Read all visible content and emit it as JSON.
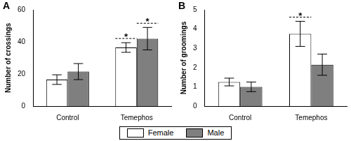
{
  "chart_data": [
    {
      "type": "bar",
      "title": "A",
      "y_label": "Number of crossings",
      "categories": [
        "Control",
        "Temephos"
      ],
      "series": [
        {
          "name": "Female",
          "color": "#ffffff",
          "values": [
            16.5,
            36.5
          ],
          "errors": [
            3,
            3
          ]
        },
        {
          "name": "Male",
          "color": "#7f7f7f",
          "values": [
            21.5,
            42
          ],
          "errors": [
            5,
            7
          ]
        }
      ],
      "annotations": [
        {
          "text": "*",
          "category": "Temephos",
          "series": "Female"
        },
        {
          "text": "*",
          "category": "Temephos",
          "series": "Male"
        }
      ],
      "ylim": [
        0,
        60
      ],
      "yticks": [
        0,
        20,
        40,
        60
      ],
      "grid": false,
      "legend": "bottom"
    },
    {
      "type": "bar",
      "title": "B",
      "y_label": "Number of groomings",
      "categories": [
        "Control",
        "Temephos"
      ],
      "series": [
        {
          "name": "Female",
          "color": "#ffffff",
          "values": [
            1.25,
            3.75
          ],
          "errors": [
            0.2,
            0.65
          ]
        },
        {
          "name": "Male",
          "color": "#7f7f7f",
          "values": [
            1.0,
            2.15
          ],
          "errors": [
            0.25,
            0.55
          ]
        }
      ],
      "annotations": [
        {
          "text": "*",
          "category": "Temephos",
          "series": "Female"
        }
      ],
      "ylim": [
        0,
        5
      ],
      "yticks": [
        0,
        1,
        2,
        3,
        4,
        5
      ],
      "grid": false,
      "legend": "bottom"
    }
  ]
}
